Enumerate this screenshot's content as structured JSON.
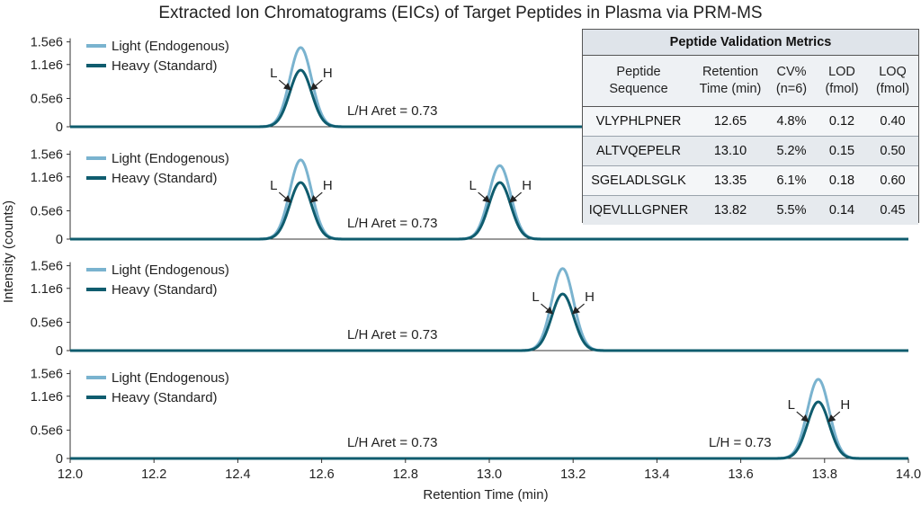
{
  "chart_data": {
    "type": "line",
    "title": "Extracted Ion Chromatograms (EICs) of Target Peptides in Plasma via PRM-MS",
    "xlabel": "Retention Time (min)",
    "ylabel": "Intensity (counts)",
    "xlim": [
      12.0,
      14.0
    ],
    "ylim": [
      0,
      1700000
    ],
    "x_ticks": [
      "12.0",
      "12.2",
      "12.4",
      "12.6",
      "12.8",
      "13.0",
      "13.2",
      "13.4",
      "13.6",
      "13.8",
      "14.0"
    ],
    "y_tick_labels": [
      "0",
      "0.5e6",
      "1.1e6",
      "1.5e6"
    ],
    "y_tick_values": [
      0,
      500000,
      1100000,
      1500000
    ],
    "legend": {
      "placement": "top-left",
      "entries": [
        "Light (Endogenous)",
        "Heavy (Standard)"
      ]
    },
    "colors": {
      "light": "#7ab3cf",
      "heavy": "#0f5c6e"
    },
    "grid": false,
    "panels": [
      {
        "peaks": [
          {
            "rt": 12.55,
            "light": 1400000,
            "heavy": 1000000
          }
        ],
        "annotations": [
          "L/H Aret = 0.73"
        ]
      },
      {
        "peaks": [
          {
            "rt": 12.55,
            "light": 1400000,
            "heavy": 1000000
          },
          {
            "rt": 13.025,
            "light": 1300000,
            "heavy": 1000000
          }
        ],
        "annotations": [
          "L/H Aret = 0.73"
        ]
      },
      {
        "peaks": [
          {
            "rt": 13.175,
            "light": 1450000,
            "heavy": 1000000
          }
        ],
        "annotations": [
          "L/H Aret = 0.73"
        ]
      },
      {
        "peaks": [
          {
            "rt": 13.785,
            "light": 1400000,
            "heavy": 1000000
          }
        ],
        "annotations": [
          "L/H Aret = 0.73",
          "L/H = 0.73"
        ]
      }
    ],
    "peak_labels": {
      "light": "L",
      "heavy": "H"
    }
  },
  "table": {
    "title": "Peptide Validation Metrics",
    "columns": [
      "Peptide\nSequence",
      "Retention\nTime (min)",
      "CV%\n(n=6)",
      "LOD\n(fmol)",
      "LOQ\n(fmol)"
    ],
    "rows": [
      [
        "VLYPHLPNER",
        "12.65",
        "4.8%",
        "0.12",
        "0.40"
      ],
      [
        "ALTVQEPELR",
        "13.10",
        "5.2%",
        "0.15",
        "0.50"
      ],
      [
        "SGELADLSGLK",
        "13.35",
        "6.1%",
        "0.18",
        "0.60"
      ],
      [
        "IQEVLLLGPNER",
        "13.82",
        "5.5%",
        "0.14",
        "0.45"
      ]
    ]
  }
}
